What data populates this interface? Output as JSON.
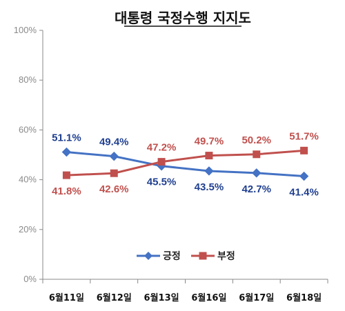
{
  "chart_data": {
    "type": "line",
    "title": "대통령 국정수행 지지도",
    "categories": [
      "6월11일",
      "6월12일",
      "6월13일",
      "6월16일",
      "6월17일",
      "6월18일"
    ],
    "y_ticks": [
      "0%",
      "20%",
      "40%",
      "60%",
      "80%",
      "100%"
    ],
    "ylim": [
      0,
      100
    ],
    "grid": false,
    "legend_position": "bottom-center",
    "series": [
      {
        "name": "긍정",
        "values": [
          51.1,
          49.4,
          45.5,
          43.5,
          42.7,
          41.4
        ],
        "labels": [
          "51.1%",
          "49.4%",
          "45.5%",
          "43.5%",
          "42.7%",
          "41.4%"
        ],
        "color": "#4472C4",
        "label_color": "#1F3F8F",
        "marker": "diamond"
      },
      {
        "name": "부정",
        "values": [
          41.8,
          42.6,
          47.2,
          49.7,
          50.2,
          51.7
        ],
        "labels": [
          "41.8%",
          "42.6%",
          "47.2%",
          "49.7%",
          "50.2%",
          "51.7%"
        ],
        "color": "#C0504D",
        "label_color": "#C0504D",
        "marker": "square"
      }
    ]
  }
}
